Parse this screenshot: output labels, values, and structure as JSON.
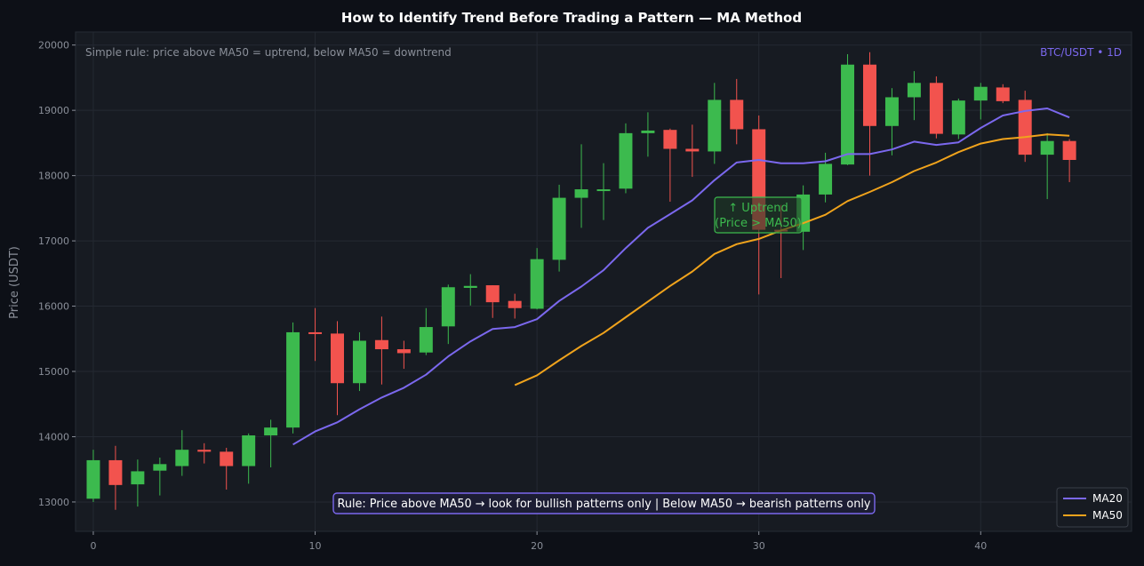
{
  "chart_data": {
    "type": "candlestick",
    "title": "How to Identify Trend Before Trading a Pattern — MA Method",
    "xlabel": "",
    "ylabel": "Price (USDT)",
    "xlim": [
      -0.8,
      46.8
    ],
    "ylim": [
      12550,
      20200
    ],
    "x_ticks": [
      0,
      10,
      20,
      30,
      40
    ],
    "y_ticks": [
      13000,
      14000,
      15000,
      16000,
      17000,
      18000,
      19000,
      20000
    ],
    "grid": true,
    "legend_position": "bottom-right",
    "subtitle_note": "Simple rule: price above MA50 = uptrend, below MA50 = downtrend",
    "symbol_label": "BTC/USDT • 1D",
    "annotation": {
      "text_line1": "↑ Uptrend",
      "text_line2": "(Price > MA50)",
      "x": 30,
      "y": 17400
    },
    "rule_box": "Rule: Price above MA50 → look for bullish patterns only | Below MA50 → bearish patterns only",
    "colors": {
      "up": "#3cba4e",
      "down": "#f2534e",
      "ma20": "#7b68ee",
      "ma50": "#f0a31c",
      "background": "#171b22",
      "page": "#0d1017"
    },
    "candles": [
      {
        "x": 0,
        "open": 13050,
        "high": 13800,
        "low": 13000,
        "close": 13640
      },
      {
        "x": 1,
        "open": 13640,
        "high": 13860,
        "low": 12880,
        "close": 13260
      },
      {
        "x": 2,
        "open": 13270,
        "high": 13650,
        "low": 12930,
        "close": 13470
      },
      {
        "x": 3,
        "open": 13480,
        "high": 13680,
        "low": 13100,
        "close": 13580
      },
      {
        "x": 4,
        "open": 13550,
        "high": 14100,
        "low": 13400,
        "close": 13800
      },
      {
        "x": 5,
        "open": 13800,
        "high": 13900,
        "low": 13590,
        "close": 13770
      },
      {
        "x": 6,
        "open": 13770,
        "high": 13830,
        "low": 13190,
        "close": 13550
      },
      {
        "x": 7,
        "open": 13550,
        "high": 14050,
        "low": 13280,
        "close": 14020
      },
      {
        "x": 8,
        "open": 14020,
        "high": 14260,
        "low": 13530,
        "close": 14140
      },
      {
        "x": 9,
        "open": 14140,
        "high": 15750,
        "low": 14050,
        "close": 15600
      },
      {
        "x": 10,
        "open": 15600,
        "high": 15970,
        "low": 15160,
        "close": 15580
      },
      {
        "x": 11,
        "open": 15580,
        "high": 15770,
        "low": 14330,
        "close": 14820
      },
      {
        "x": 12,
        "open": 14820,
        "high": 15600,
        "low": 14700,
        "close": 15470
      },
      {
        "x": 13,
        "open": 15480,
        "high": 15840,
        "low": 14800,
        "close": 15340
      },
      {
        "x": 14,
        "open": 15340,
        "high": 15470,
        "low": 15040,
        "close": 15280
      },
      {
        "x": 15,
        "open": 15290,
        "high": 15970,
        "low": 15250,
        "close": 15680
      },
      {
        "x": 16,
        "open": 15690,
        "high": 16330,
        "low": 15420,
        "close": 16290
      },
      {
        "x": 17,
        "open": 16280,
        "high": 16490,
        "low": 16010,
        "close": 16310
      },
      {
        "x": 18,
        "open": 16320,
        "high": 16320,
        "low": 15820,
        "close": 16060
      },
      {
        "x": 19,
        "open": 16080,
        "high": 16190,
        "low": 15810,
        "close": 15970
      },
      {
        "x": 20,
        "open": 15960,
        "high": 16890,
        "low": 15950,
        "close": 16720
      },
      {
        "x": 21,
        "open": 16710,
        "high": 17860,
        "low": 16530,
        "close": 17660
      },
      {
        "x": 22,
        "open": 17660,
        "high": 18480,
        "low": 17200,
        "close": 17790
      },
      {
        "x": 23,
        "open": 17790,
        "high": 18190,
        "low": 17320,
        "close": 17790
      },
      {
        "x": 24,
        "open": 17800,
        "high": 18800,
        "low": 17730,
        "close": 18650
      },
      {
        "x": 25,
        "open": 18650,
        "high": 18970,
        "low": 18290,
        "close": 18690
      },
      {
        "x": 26,
        "open": 18700,
        "high": 18720,
        "low": 17600,
        "close": 18410
      },
      {
        "x": 27,
        "open": 18410,
        "high": 18780,
        "low": 17980,
        "close": 18370
      },
      {
        "x": 28,
        "open": 18370,
        "high": 19420,
        "low": 18180,
        "close": 19160
      },
      {
        "x": 29,
        "open": 19160,
        "high": 19480,
        "low": 18480,
        "close": 18710
      },
      {
        "x": 30,
        "open": 18710,
        "high": 18920,
        "low": 16180,
        "close": 17170
      },
      {
        "x": 31,
        "open": 17170,
        "high": 17550,
        "low": 16430,
        "close": 17150
      },
      {
        "x": 32,
        "open": 17140,
        "high": 17850,
        "low": 16860,
        "close": 17710
      },
      {
        "x": 33,
        "open": 17710,
        "high": 18350,
        "low": 17590,
        "close": 18180
      },
      {
        "x": 34,
        "open": 18170,
        "high": 19860,
        "low": 18160,
        "close": 19700
      },
      {
        "x": 35,
        "open": 19700,
        "high": 19890,
        "low": 18000,
        "close": 18760
      },
      {
        "x": 36,
        "open": 18760,
        "high": 19340,
        "low": 18310,
        "close": 19200
      },
      {
        "x": 37,
        "open": 19200,
        "high": 19600,
        "low": 18850,
        "close": 19420
      },
      {
        "x": 38,
        "open": 19420,
        "high": 19520,
        "low": 18570,
        "close": 18640
      },
      {
        "x": 39,
        "open": 18630,
        "high": 19180,
        "low": 18560,
        "close": 19150
      },
      {
        "x": 40,
        "open": 19150,
        "high": 19420,
        "low": 18860,
        "close": 19360
      },
      {
        "x": 41,
        "open": 19350,
        "high": 19400,
        "low": 19110,
        "close": 19140
      },
      {
        "x": 42,
        "open": 19160,
        "high": 19300,
        "low": 18210,
        "close": 18320
      },
      {
        "x": 43,
        "open": 18320,
        "high": 18650,
        "low": 17640,
        "close": 18530
      },
      {
        "x": 44,
        "open": 18530,
        "high": 18560,
        "low": 17900,
        "close": 18240
      }
    ],
    "series": [
      {
        "name": "MA20",
        "x": [
          9,
          10,
          11,
          12,
          13,
          14,
          15,
          16,
          17,
          18,
          19,
          20,
          21,
          22,
          23,
          24,
          25,
          26,
          27,
          28,
          29,
          30,
          31,
          32,
          33,
          34,
          35,
          36,
          37,
          38,
          39,
          40,
          41,
          42,
          43,
          44
        ],
        "values": [
          13880,
          14080,
          14220,
          14420,
          14600,
          14750,
          14950,
          15230,
          15460,
          15650,
          15680,
          15800,
          16080,
          16300,
          16550,
          16890,
          17200,
          17410,
          17620,
          17930,
          18200,
          18240,
          18190,
          18190,
          18220,
          18330,
          18330,
          18400,
          18520,
          18470,
          18510,
          18730,
          18920,
          18990,
          19030,
          18890
        ]
      },
      {
        "name": "MA50",
        "x": [
          19,
          20,
          21,
          22,
          23,
          24,
          25,
          26,
          27,
          28,
          29,
          30,
          31,
          32,
          33,
          34,
          35,
          36,
          37,
          38,
          39,
          40,
          41,
          42,
          43,
          44
        ],
        "values": [
          14790,
          14940,
          15170,
          15390,
          15590,
          15830,
          16070,
          16310,
          16530,
          16800,
          16950,
          17030,
          17160,
          17270,
          17400,
          17610,
          17750,
          17900,
          18070,
          18200,
          18360,
          18490,
          18560,
          18590,
          18630,
          18610
        ]
      }
    ]
  }
}
